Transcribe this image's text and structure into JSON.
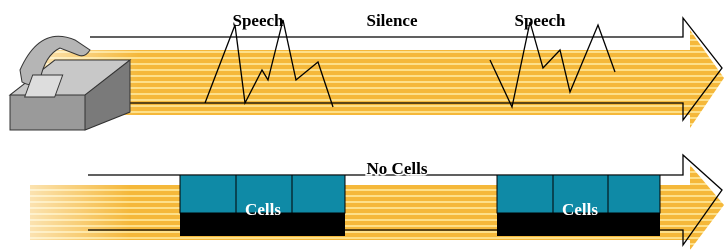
{
  "top_labels": [
    "Speech",
    "Silence",
    "Speech"
  ],
  "bottom_label": "No Cells",
  "cell_labels": [
    "Cells",
    "Cells"
  ]
}
